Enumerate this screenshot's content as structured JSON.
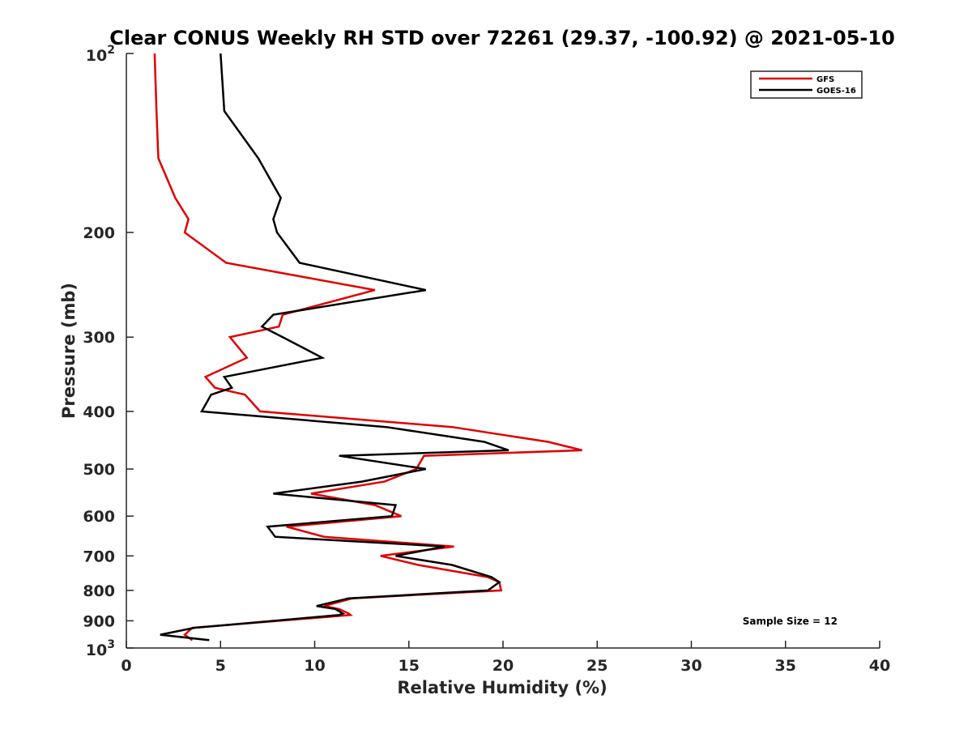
{
  "chart_data": {
    "type": "line",
    "title": "Clear CONUS Weekly RH STD over 72261 (29.37, -100.92) @ 2021-05-10",
    "xlabel": "Relative Humidity (%)",
    "ylabel": "Pressure (mb)",
    "xlim": [
      0,
      40
    ],
    "ylim": [
      100,
      1000
    ],
    "y_scale": "log",
    "y_reversed": true,
    "grid": false,
    "legend_position": "top-right",
    "x_ticks": [
      "0",
      "5",
      "10",
      "15",
      "20",
      "25",
      "30",
      "35",
      "40"
    ],
    "y_ticks": [
      {
        "value": 100,
        "base": "10",
        "exp": "2"
      },
      {
        "value": 200,
        "label": "200"
      },
      {
        "value": 300,
        "label": "300"
      },
      {
        "value": 400,
        "label": "400"
      },
      {
        "value": 500,
        "label": "500"
      },
      {
        "value": 600,
        "label": "600"
      },
      {
        "value": 700,
        "label": "700"
      },
      {
        "value": 800,
        "label": "800"
      },
      {
        "value": 900,
        "label": "900"
      },
      {
        "value": 1000,
        "base": "10",
        "exp": "3"
      }
    ],
    "series": [
      {
        "name": "GFS",
        "color": "#e00000",
        "points": [
          [
            1.5,
            100
          ],
          [
            1.6,
            125
          ],
          [
            1.7,
            150
          ],
          [
            2.6,
            175
          ],
          [
            3.3,
            190
          ],
          [
            3.1,
            200
          ],
          [
            5.3,
            225
          ],
          [
            13.2,
            250
          ],
          [
            8.3,
            275
          ],
          [
            8.1,
            288
          ],
          [
            5.5,
            300
          ],
          [
            6.4,
            325
          ],
          [
            4.2,
            350
          ],
          [
            4.7,
            365
          ],
          [
            6.3,
            375
          ],
          [
            7.1,
            400
          ],
          [
            17.3,
            425
          ],
          [
            22.4,
            450
          ],
          [
            24.2,
            465
          ],
          [
            15.8,
            475
          ],
          [
            15.4,
            500
          ],
          [
            13.7,
            525
          ],
          [
            9.8,
            550
          ],
          [
            13.2,
            575
          ],
          [
            14.6,
            600
          ],
          [
            8.5,
            625
          ],
          [
            10.5,
            650
          ],
          [
            17.4,
            675
          ],
          [
            13.5,
            700
          ],
          [
            15.5,
            725
          ],
          [
            19.2,
            760
          ],
          [
            19.8,
            775
          ],
          [
            19.9,
            800
          ],
          [
            12.0,
            825
          ],
          [
            10.5,
            850
          ],
          [
            11.3,
            860
          ],
          [
            11.8,
            875
          ],
          [
            11.9,
            880
          ],
          [
            3.5,
            925
          ],
          [
            3.1,
            950
          ],
          [
            3.5,
            970
          ]
        ]
      },
      {
        "name": "GOES-16",
        "color": "#000000",
        "points": [
          [
            5.0,
            100
          ],
          [
            5.2,
            125
          ],
          [
            7.0,
            150
          ],
          [
            8.2,
            175
          ],
          [
            7.8,
            190
          ],
          [
            8.0,
            200
          ],
          [
            9.2,
            225
          ],
          [
            15.9,
            250
          ],
          [
            7.8,
            275
          ],
          [
            7.2,
            288
          ],
          [
            8.3,
            300
          ],
          [
            10.4,
            325
          ],
          [
            5.2,
            350
          ],
          [
            5.6,
            365
          ],
          [
            4.5,
            375
          ],
          [
            4.0,
            400
          ],
          [
            13.8,
            425
          ],
          [
            19.0,
            450
          ],
          [
            20.3,
            465
          ],
          [
            11.3,
            475
          ],
          [
            15.9,
            500
          ],
          [
            12.5,
            525
          ],
          [
            7.8,
            550
          ],
          [
            14.3,
            575
          ],
          [
            14.1,
            600
          ],
          [
            7.5,
            625
          ],
          [
            7.9,
            650
          ],
          [
            16.9,
            675
          ],
          [
            14.3,
            700
          ],
          [
            17.3,
            725
          ],
          [
            19.4,
            760
          ],
          [
            19.8,
            775
          ],
          [
            19.2,
            800
          ],
          [
            11.8,
            825
          ],
          [
            10.1,
            850
          ],
          [
            11.1,
            860
          ],
          [
            11.5,
            875
          ],
          [
            11.3,
            880
          ],
          [
            3.6,
            925
          ],
          [
            1.8,
            950
          ],
          [
            4.4,
            970
          ]
        ]
      }
    ],
    "annotation": "Sample Size = 12"
  }
}
